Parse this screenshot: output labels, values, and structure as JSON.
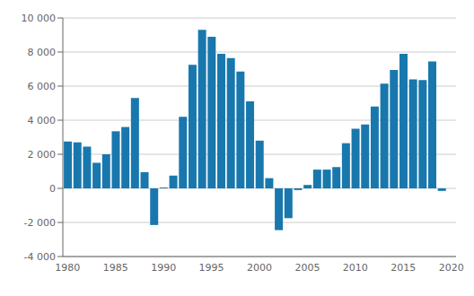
{
  "chart_data": {
    "type": "bar",
    "categories": [
      "1980",
      null,
      null,
      null,
      null,
      "1985",
      null,
      null,
      null,
      null,
      "1990",
      null,
      null,
      null,
      null,
      "1995",
      null,
      null,
      null,
      null,
      "2000",
      null,
      null,
      null,
      null,
      "2005",
      null,
      null,
      null,
      null,
      "2010",
      null,
      null,
      null,
      null,
      "2015",
      null,
      null,
      null,
      null,
      "2020"
    ],
    "values": [
      2750,
      2700,
      2450,
      1500,
      2000,
      3350,
      3600,
      5300,
      950,
      -2150,
      50,
      750,
      4200,
      7250,
      9300,
      8900,
      7900,
      7650,
      6850,
      5100,
      2800,
      600,
      -2450,
      -1750,
      -100,
      200,
      1100,
      1100,
      1250,
      2650,
      3500,
      3750,
      4800,
      6150,
      6950,
      7900,
      6400,
      6350,
      7450,
      -150,
      0
    ],
    "color": "#1878ae",
    "ylim": [
      -4000,
      10000
    ],
    "yticks": [
      {
        "value": -4000,
        "label": "-4 000"
      },
      {
        "value": -2000,
        "label": "-2 000"
      },
      0,
      {
        "value": 2000,
        "label": "2 000"
      },
      {
        "value": 4000,
        "label": "4 000"
      },
      {
        "value": 6000,
        "label": "6 000"
      },
      {
        "value": 8000,
        "label": "8 000"
      },
      {
        "value": 10000,
        "label": "10 000"
      }
    ],
    "grid": true
  }
}
